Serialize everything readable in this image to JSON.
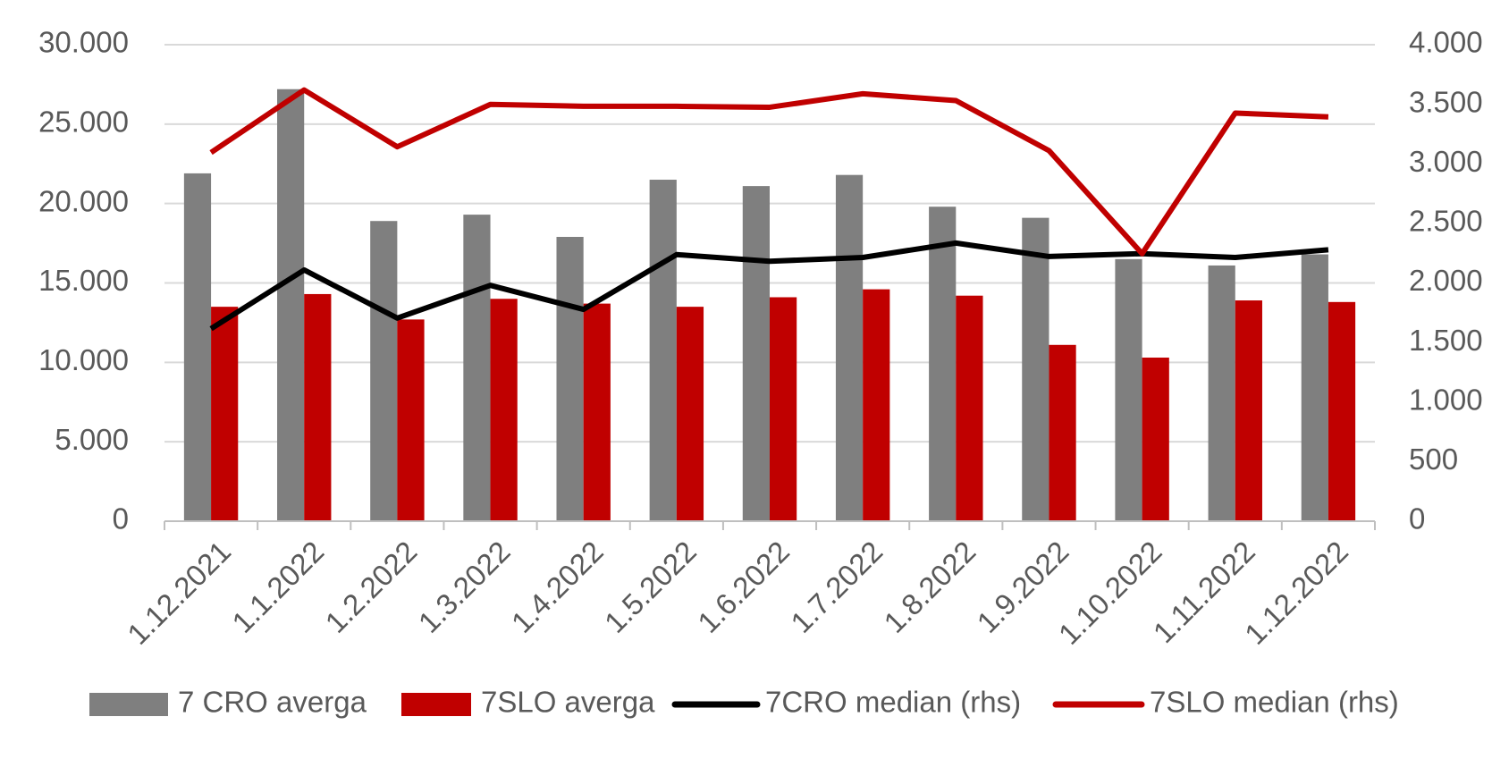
{
  "chart_data": {
    "type": "bar_line",
    "categories": [
      "1.12.2021",
      "1.1.2022",
      "1.2.2022",
      "1.3.2022",
      "1.4.2022",
      "1.5.2022",
      "1.6.2022",
      "1.7.2022",
      "1.8.2022",
      "1.9.2022",
      "1.10.2022",
      "1.11.2022",
      "1.12.2022"
    ],
    "series": [
      {
        "name": "7 CRO averga",
        "type": "bar",
        "color": "#7f7f7f",
        "values": [
          21900,
          27200,
          18900,
          19300,
          17900,
          21500,
          21100,
          21800,
          19800,
          19100,
          16500,
          16100,
          16800
        ]
      },
      {
        "name": "7SLO averga",
        "type": "bar",
        "color": "#c00000",
        "values": [
          13500,
          14300,
          12700,
          14000,
          13700,
          13500,
          14100,
          14600,
          14200,
          11100,
          10300,
          13900,
          13800
        ]
      },
      {
        "name": "7CRO median (rhs)",
        "type": "line",
        "axis": "y2",
        "color": "#000000",
        "values": [
          1616,
          2109,
          1705,
          1980,
          1778,
          2238,
          2182,
          2214,
          2335,
          2222,
          2246,
          2214,
          2279
        ]
      },
      {
        "name": "7SLO median (rhs)",
        "type": "line",
        "axis": "y2",
        "color": "#c00000",
        "values": [
          3095,
          3620,
          3143,
          3499,
          3483,
          3483,
          3475,
          3588,
          3531,
          3111,
          2246,
          3426,
          3394
        ]
      }
    ],
    "ylim": [
      0,
      30000
    ],
    "yticks": [
      0,
      {
        "value": 5000,
        "label": "5.000"
      },
      {
        "value": 10000,
        "label": "10.000"
      },
      {
        "value": 15000,
        "label": "15.000"
      },
      {
        "value": 20000,
        "label": "20.000"
      },
      {
        "value": 25000,
        "label": "25.000"
      },
      {
        "value": 30000,
        "label": "30.000"
      }
    ],
    "y2lim": [
      0,
      4000
    ],
    "y2ticks": [
      0,
      500,
      {
        "value": 1000,
        "label": "1.000"
      },
      {
        "value": 1500,
        "label": "1.500"
      },
      {
        "value": 2000,
        "label": "2.000"
      },
      {
        "value": 2500,
        "label": "2.500"
      },
      {
        "value": 3000,
        "label": "3.000"
      },
      {
        "value": 3500,
        "label": "3.500"
      },
      {
        "value": 4000,
        "label": "4.000"
      }
    ],
    "grid": true,
    "legend": "bottom"
  }
}
